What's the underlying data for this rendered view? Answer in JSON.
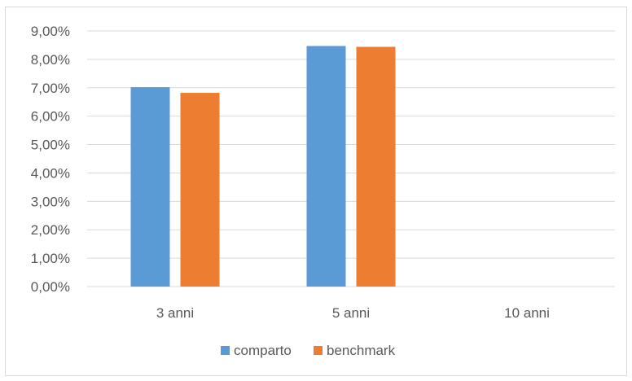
{
  "chart_data": {
    "type": "bar",
    "categories": [
      "3 anni",
      "5 anni",
      "10 anni"
    ],
    "series": [
      {
        "name": "comparto",
        "color": "#5B9BD5",
        "values": [
          7.02,
          8.47,
          null
        ]
      },
      {
        "name": "benchmark",
        "color": "#ED7D31",
        "values": [
          6.82,
          8.44,
          null
        ]
      }
    ],
    "ylim": [
      0,
      9
    ],
    "ytick_step": 1,
    "ytick_labels": [
      "0,00%",
      "1,00%",
      "2,00%",
      "3,00%",
      "4,00%",
      "5,00%",
      "6,00%",
      "7,00%",
      "8,00%",
      "9,00%"
    ],
    "title": "",
    "xlabel": "",
    "ylabel": "",
    "grid": true,
    "legend_position": "bottom",
    "gridline_color": "#d9d9d9"
  }
}
